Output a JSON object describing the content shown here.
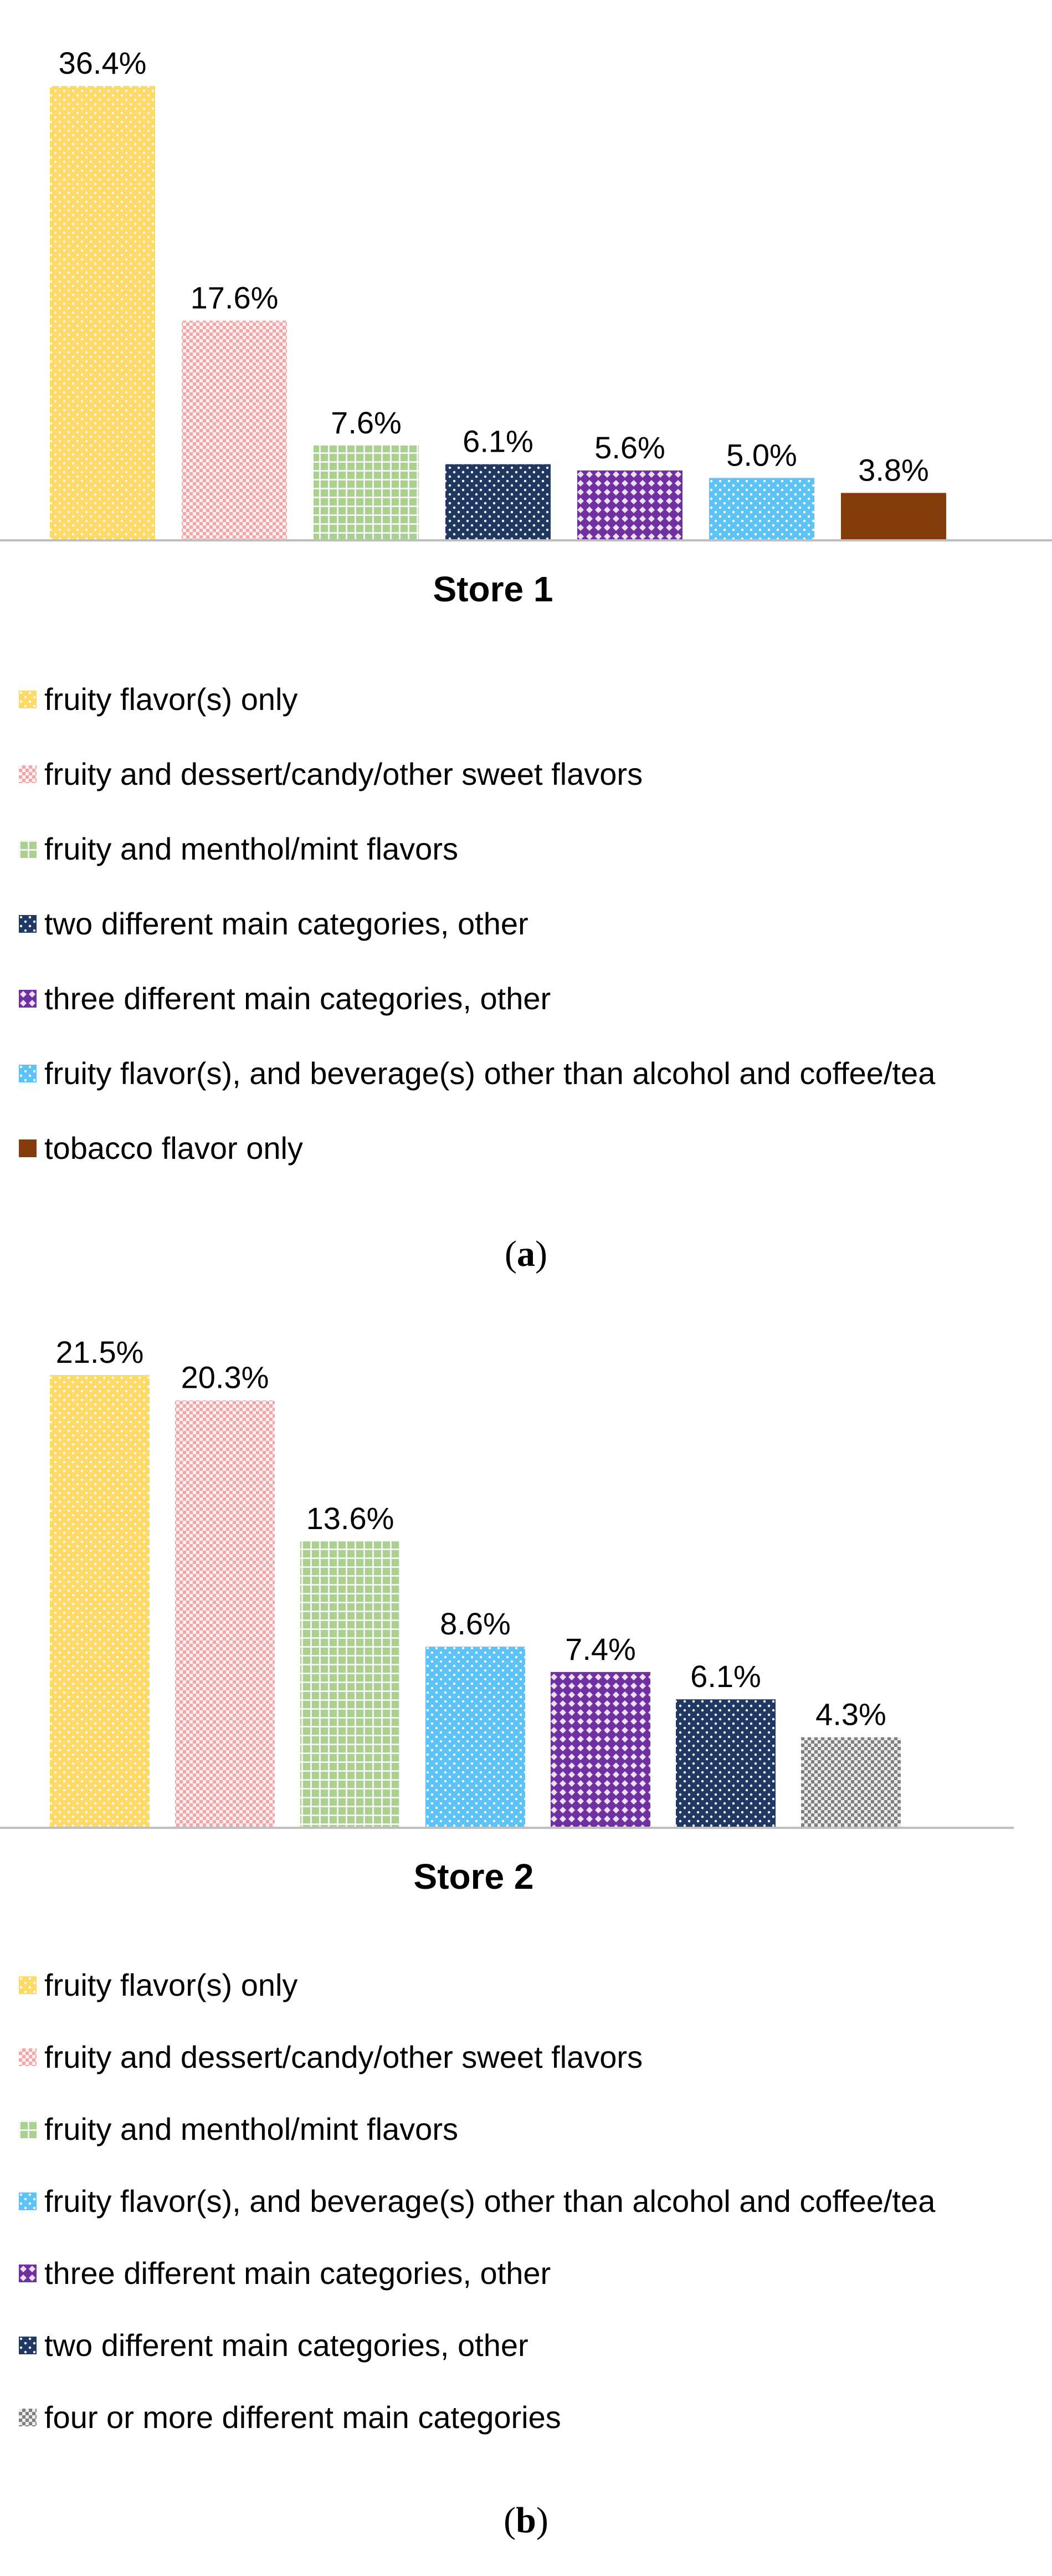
{
  "chart_data": [
    {
      "type": "bar",
      "title": "Store 1",
      "categories": [
        "fruity flavor(s) only",
        "fruity and dessert/candy/other sweet flavors",
        "fruity and menthol/mint flavors",
        "two different main categories, other",
        "three different main categories, other",
        "fruity flavor(s), and beverage(s) other than alcohol and coffee/tea",
        "tobacco flavor only"
      ],
      "values": [
        36.4,
        17.6,
        7.6,
        6.1,
        5.6,
        5.0,
        3.8
      ],
      "value_labels": [
        "36.4%",
        "17.6%",
        "7.6%",
        "6.1%",
        "5.6%",
        "5.0%",
        "3.8%"
      ],
      "colors": [
        "#FFD966",
        "#F4A6A6",
        "#A9D18E",
        "#1F3864",
        "#7030A0",
        "#5BC3F5",
        "#843C0C"
      ],
      "patterns": [
        "dots",
        "checker",
        "grid",
        "dots",
        "diamond",
        "dots",
        "solid"
      ],
      "legend_position": "bottom",
      "ylim": [
        0,
        40
      ],
      "grid": false,
      "caption_letter": "a"
    },
    {
      "type": "bar",
      "title": "Store 2",
      "categories": [
        "fruity flavor(s) only",
        "fruity and dessert/candy/other sweet flavors",
        "fruity and menthol/mint flavors",
        "fruity flavor(s), and beverage(s) other than alcohol and coffee/tea",
        "three different main categories, other",
        "two different main categories, other",
        "four or more different main categories"
      ],
      "values": [
        21.5,
        20.3,
        13.6,
        8.6,
        7.4,
        6.1,
        4.3
      ],
      "value_labels": [
        "21.5%",
        "20.3%",
        "13.6%",
        "8.6%",
        "7.4%",
        "6.1%",
        "4.3%"
      ],
      "colors": [
        "#FFD966",
        "#F4A6A6",
        "#A9D18E",
        "#5BC3F5",
        "#7030A0",
        "#1F3864",
        "#7F7F7F"
      ],
      "patterns": [
        "dots",
        "checker",
        "grid",
        "dots",
        "diamond",
        "dots",
        "checker"
      ],
      "legend_position": "bottom",
      "ylim": [
        0,
        22
      ],
      "grid": false,
      "caption_letter": "b"
    }
  ]
}
